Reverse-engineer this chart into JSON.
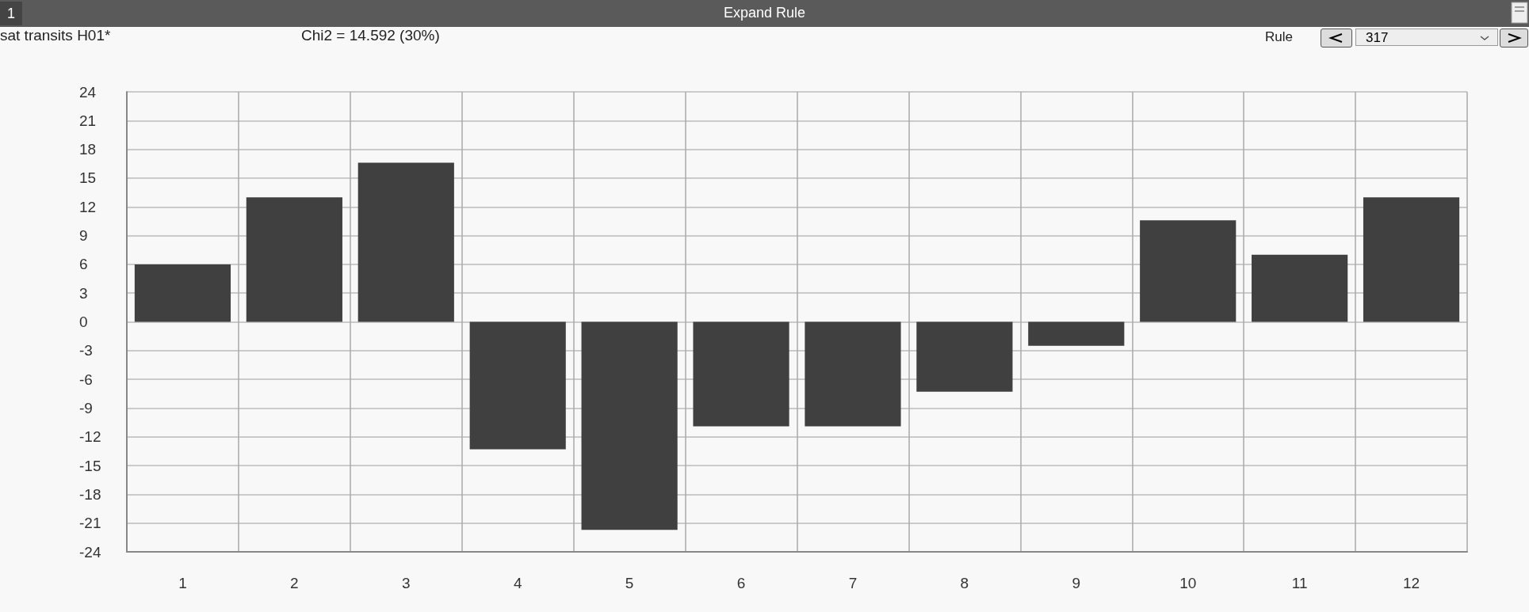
{
  "chart_data": {
    "type": "bar",
    "title": "Expand Rule",
    "annotations": [
      "1",
      "sat transits H01*",
      "Chi2 = 14.592 (30%)",
      "Rule",
      "317"
    ],
    "categories": [
      "1",
      "2",
      "3",
      "4",
      "5",
      "6",
      "7",
      "8",
      "9",
      "10",
      "11",
      "12"
    ],
    "values": [
      6,
      13,
      16.6,
      -13.3,
      -21.7,
      -10.9,
      -10.9,
      -7.3,
      -2.5,
      10.6,
      7,
      13
    ],
    "color": "#404040",
    "ylim": [
      -24,
      24
    ],
    "yticks": [
      -24,
      -21,
      -18,
      -15,
      -12,
      -9,
      -6,
      -3,
      0,
      3,
      6,
      9,
      12,
      15,
      18,
      21,
      24
    ],
    "grid": true
  }
}
